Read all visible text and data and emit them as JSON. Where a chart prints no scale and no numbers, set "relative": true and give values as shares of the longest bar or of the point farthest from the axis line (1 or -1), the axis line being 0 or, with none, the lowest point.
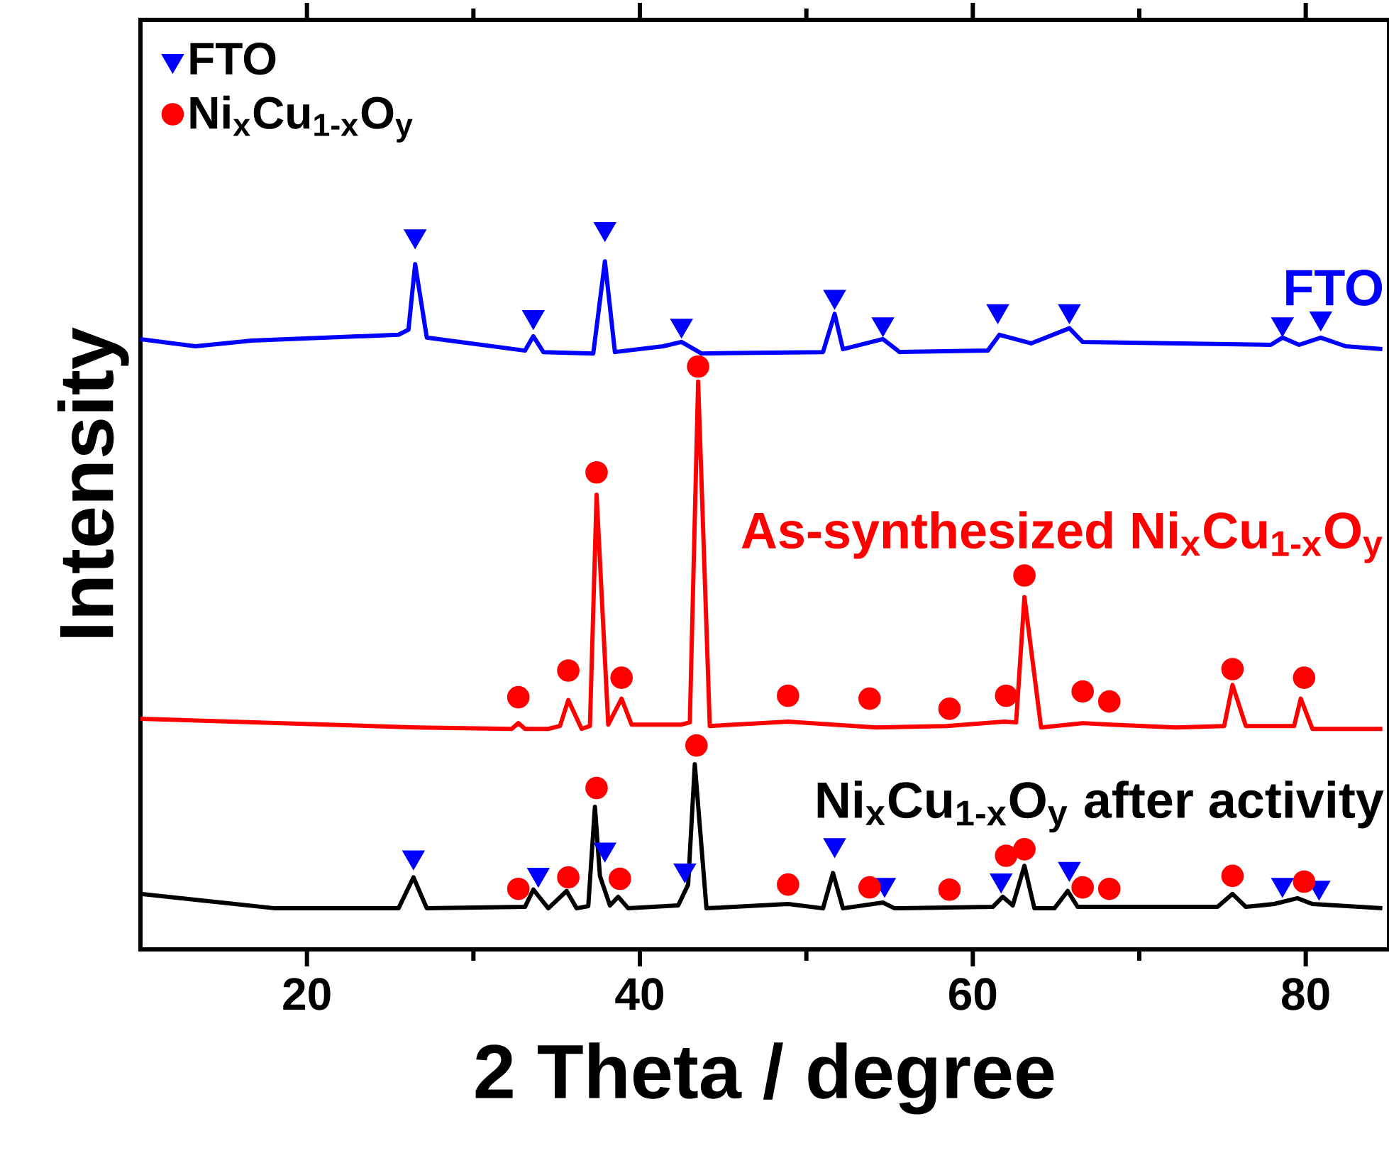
{
  "chart_data": {
    "type": "line",
    "xlabel": "2 Theta / degree",
    "ylabel": "Intensity",
    "relative": true,
    "xlim": [
      10,
      85
    ],
    "xticks": [
      20,
      40,
      60,
      80
    ],
    "legend": "top left",
    "series": [
      {
        "name": "FTO",
        "color": "#0000ff",
        "x": [
          10,
          13.3,
          16.7,
          25.5,
          26.1,
          26.5,
          27.2,
          33.1,
          33.6,
          34.2,
          37.2,
          37.9,
          38.5,
          41.4,
          42.5,
          43.7,
          51.0,
          51.7,
          52.2,
          54.6,
          55.6,
          60.9,
          61.6,
          63.5,
          65.8,
          66.6,
          77.9,
          78.6,
          79.6,
          80.9,
          82.4,
          84.6
        ],
        "values": [
          0.847,
          0.837,
          0.845,
          0.853,
          0.86,
          0.951,
          0.849,
          0.831,
          0.851,
          0.829,
          0.827,
          0.955,
          0.829,
          0.837,
          0.843,
          0.827,
          0.829,
          0.882,
          0.833,
          0.847,
          0.829,
          0.831,
          0.853,
          0.841,
          0.862,
          0.843,
          0.839,
          0.849,
          0.839,
          0.849,
          0.837,
          0.833
        ]
      },
      {
        "name": "As-synthesized Ni$_{x}$Cu$_{1-x}$O$_{y}$",
        "color": "#ff0000",
        "x": [
          10,
          26.6,
          32.3,
          32.7,
          33.1,
          34.5,
          35.2,
          35.7,
          36.5,
          37.0,
          37.4,
          38.1,
          38.9,
          39.5,
          42.5,
          43.0,
          43.5,
          44.2,
          48.9,
          54.2,
          58.4,
          61.9,
          62.6,
          63.1,
          64.1,
          66.6,
          68.3,
          72.2,
          75.1,
          75.6,
          76.4,
          79.3,
          79.7,
          80.4,
          84.6
        ],
        "values": [
          0.32,
          0.308,
          0.306,
          0.314,
          0.306,
          0.306,
          0.31,
          0.346,
          0.306,
          0.31,
          0.631,
          0.312,
          0.348,
          0.312,
          0.312,
          0.315,
          0.788,
          0.31,
          0.316,
          0.308,
          0.31,
          0.316,
          0.315,
          0.489,
          0.308,
          0.314,
          0.312,
          0.308,
          0.31,
          0.367,
          0.31,
          0.31,
          0.348,
          0.306,
          0.306
        ]
      },
      {
        "name": "Ni$_{x}$Cu$_{1-x}$O$_{y}$ after activity",
        "color": "#000000",
        "x": [
          10,
          18.1,
          25.5,
          26.4,
          27.2,
          33.1,
          33.6,
          34.5,
          35.6,
          36.2,
          36.9,
          37.3,
          37.6,
          38.2,
          38.7,
          39.3,
          42.3,
          42.9,
          43.3,
          44.0,
          48.9,
          51.0,
          51.6,
          52.2,
          54.6,
          55.3,
          61.2,
          61.8,
          62.4,
          63.1,
          63.7,
          64.9,
          65.7,
          66.3,
          74.7,
          75.6,
          76.4,
          78.1,
          79.5,
          80.4,
          84.6
        ],
        "values": [
          0.077,
          0.057,
          0.057,
          0.1,
          0.057,
          0.059,
          0.083,
          0.057,
          0.081,
          0.057,
          0.06,
          0.198,
          0.102,
          0.061,
          0.073,
          0.057,
          0.061,
          0.09,
          0.257,
          0.057,
          0.063,
          0.057,
          0.106,
          0.057,
          0.065,
          0.057,
          0.059,
          0.073,
          0.061,
          0.116,
          0.057,
          0.057,
          0.081,
          0.059,
          0.059,
          0.077,
          0.059,
          0.063,
          0.071,
          0.063,
          0.057
        ]
      },
      {
        "name": "FTO",
        "type": "scatter",
        "marker": "triangle",
        "color": "#0000ff",
        "x": [
          26.5,
          33.6,
          37.9,
          42.5,
          51.7,
          54.6,
          61.5,
          65.8,
          78.6,
          80.9,
          26.4,
          33.9,
          37.9,
          42.7,
          51.7,
          54.7,
          61.7,
          65.8,
          78.6,
          80.8
        ],
        "values": [
          0.99,
          0.878,
          1.0,
          0.866,
          0.906,
          0.868,
          0.886,
          0.886,
          0.868,
          0.876,
          0.128,
          0.104,
          0.139,
          0.11,
          0.145,
          0.09,
          0.096,
          0.112,
          0.09,
          0.086
        ]
      },
      {
        "name": "Ni$_{x}$Cu$_{1-x}$O$_{y}$",
        "type": "scatter",
        "marker": "circle",
        "color": "#ff0000",
        "x": [
          32.7,
          35.7,
          37.4,
          38.9,
          43.5,
          48.9,
          53.8,
          58.6,
          62.0,
          63.1,
          66.6,
          68.2,
          75.6,
          79.9,
          32.7,
          35.7,
          37.4,
          38.8,
          43.4,
          48.9,
          53.8,
          58.6,
          62.0,
          63.1,
          66.6,
          68.2,
          75.6,
          79.9
        ],
        "values": [
          0.35,
          0.387,
          0.662,
          0.377,
          0.809,
          0.352,
          0.348,
          0.334,
          0.352,
          0.519,
          0.358,
          0.344,
          0.389,
          0.377,
          0.084,
          0.1,
          0.224,
          0.098,
          0.283,
          0.09,
          0.086,
          0.083,
          0.13,
          0.139,
          0.086,
          0.084,
          0.102,
          0.094
        ]
      }
    ]
  }
}
